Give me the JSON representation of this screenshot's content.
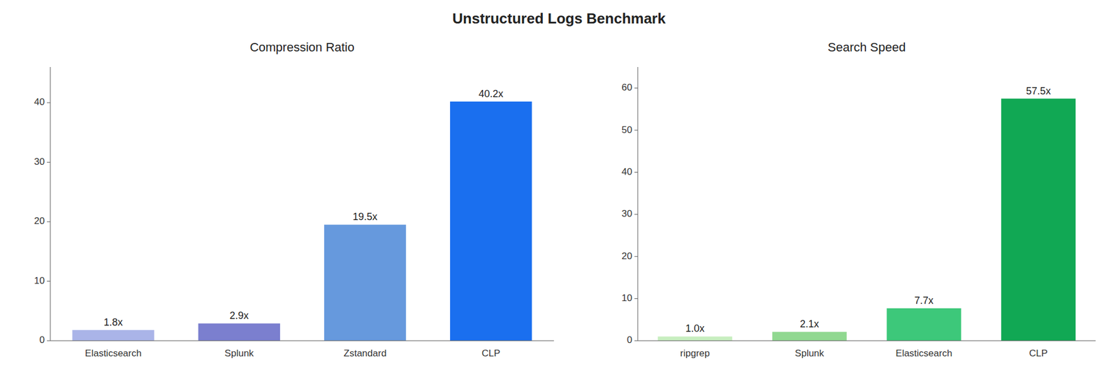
{
  "title": "Unstructured Logs Benchmark",
  "chart_data": [
    {
      "type": "bar",
      "title": "Compression Ratio",
      "categories": [
        "Elasticsearch",
        "Splunk",
        "Zstandard",
        "CLP"
      ],
      "values": [
        1.8,
        2.9,
        19.5,
        40.2
      ],
      "value_labels": [
        "1.8x",
        "2.9x",
        "19.5x",
        "40.2x"
      ],
      "colors": [
        "#aab4e8",
        "#7b7fcf",
        "#6699dd",
        "#1a6fef"
      ],
      "ylim": [
        0,
        46
      ],
      "yticks": [
        0,
        10,
        20,
        30,
        40
      ],
      "grid": false,
      "data_labels": true
    },
    {
      "type": "bar",
      "title": "Search Speed",
      "categories": [
        "ripgrep",
        "Splunk",
        "Elasticsearch",
        "CLP"
      ],
      "values": [
        1.0,
        2.1,
        7.7,
        57.5
      ],
      "value_labels": [
        "1.0x",
        "2.1x",
        "7.7x",
        "57.5x"
      ],
      "colors": [
        "#c8eec0",
        "#90d890",
        "#3dc87a",
        "#11a854"
      ],
      "ylim": [
        0,
        65
      ],
      "yticks": [
        0,
        10,
        20,
        30,
        40,
        50,
        60
      ],
      "grid": false,
      "data_labels": true
    }
  ]
}
